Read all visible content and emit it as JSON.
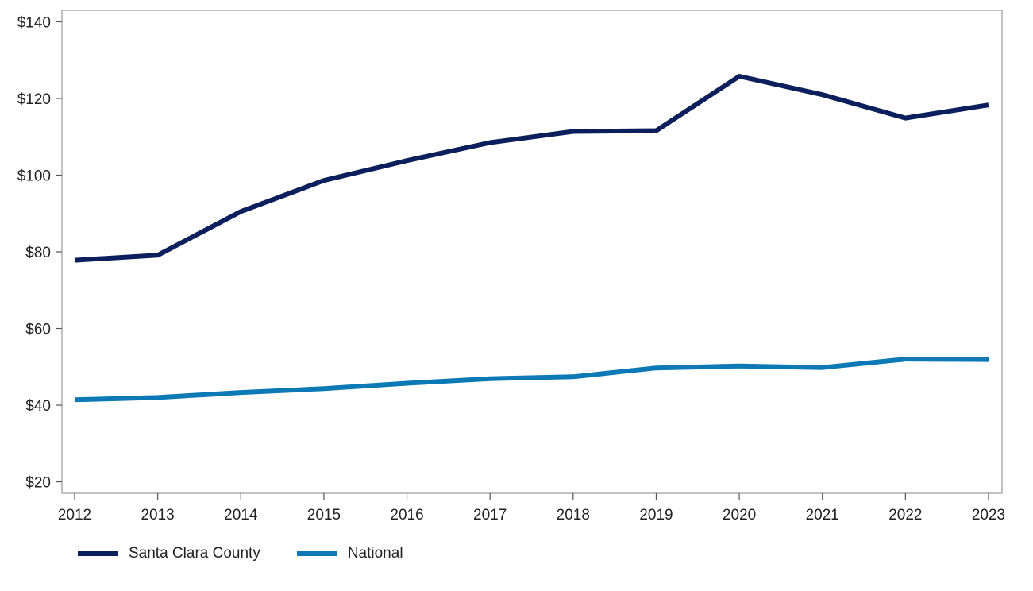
{
  "chart_data": {
    "type": "line",
    "title": "",
    "xlabel": "",
    "ylabel": "",
    "x": [
      2012,
      2013,
      2014,
      2015,
      2016,
      2017,
      2018,
      2019,
      2020,
      2021,
      2022,
      2023
    ],
    "x_tick_labels": [
      "2012",
      "2013",
      "2014",
      "2015",
      "2016",
      "2017",
      "2018",
      "2019",
      "2020",
      "2021",
      "2022",
      "2023"
    ],
    "ylim": [
      17,
      143
    ],
    "y_ticks": [
      20,
      40,
      60,
      80,
      100,
      120,
      140
    ],
    "y_tick_labels": [
      "$20",
      "$40",
      "$60",
      "$80",
      "$100",
      "$120",
      "$140"
    ],
    "grid": false,
    "legend_position": "bottom-left",
    "series": [
      {
        "name": "Santa Clara County",
        "color": "#0b1f5c",
        "values": [
          77.8,
          79.1,
          90.5,
          98.6,
          103.8,
          108.5,
          111.4,
          111.6,
          125.8,
          121.0,
          114.9,
          118.3
        ]
      },
      {
        "name": "National",
        "color": "#0b79b5",
        "values": [
          41.4,
          42.0,
          43.3,
          44.3,
          45.7,
          46.9,
          47.4,
          49.7,
          50.2,
          49.8,
          52.0,
          51.9
        ]
      }
    ]
  }
}
